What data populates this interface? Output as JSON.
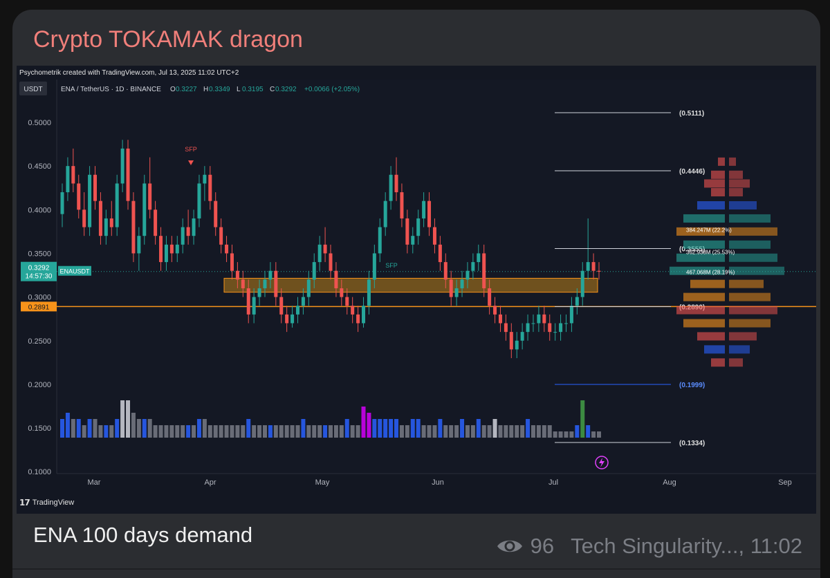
{
  "channel": {
    "title": "Crypto TOKAMAK dragon"
  },
  "screenshot": {
    "credit": "Psychometrik created with TradingView.com, Jul 13, 2025 11:02 UTC+2",
    "watermark": "TradingView"
  },
  "post": {
    "caption": "ENA 100 days demand",
    "views": "96",
    "author_time": "Tech Singularity..., 11:02"
  },
  "icons": {
    "views": "eye-icon",
    "logo": "tradingview-logo-icon",
    "flash": "lightning-icon"
  },
  "colors": {
    "up": "#26a69a",
    "down": "#ef5350",
    "orange": "#f7931a",
    "zone": "#b9821a",
    "volume_blue": "#2962ff",
    "volume_gray": "#787b86"
  },
  "chart_data": {
    "type": "candlestick",
    "symbol_bar": {
      "currency_tag": "USDT",
      "symbol": "ENA / TetherUS · 1D · BINANCE",
      "ohlc_labels": [
        "O",
        "H",
        "L",
        "C"
      ],
      "ohlc_values": [
        "0.3227",
        "0.3349",
        "0.3195",
        "0.3292"
      ],
      "change": "+0.0066 (+2.05%)"
    },
    "y_ticks": [
      "0.5000",
      "0.4500",
      "0.4000",
      "0.3500",
      "0.3000",
      "0.2500",
      "0.2000",
      "0.1500",
      "0.1000"
    ],
    "y_range": [
      0.095,
      0.55
    ],
    "x_ticks": [
      "Mar",
      "Apr",
      "May",
      "Jun",
      "Jul",
      "Aug",
      "Sep"
    ],
    "last_price": {
      "label": "ENAUSDT",
      "value": "0.3292",
      "countdown": "14:57:30"
    },
    "horizontal_line": {
      "value": 0.2891,
      "label": "0.2891"
    },
    "demand_zone": [
      0.3055,
      0.3215
    ],
    "annotations": [
      "SFP",
      "SFP"
    ],
    "fib_levels": [
      {
        "value": 0.5111,
        "label": "(0.5111)"
      },
      {
        "value": 0.4446,
        "label": "(0.4446)"
      },
      {
        "value": 0.3555,
        "label": "(0.3555)"
      },
      {
        "value": 0.289,
        "label": "(0.2890)"
      },
      {
        "value": 0.1999,
        "label": "(0.1999)"
      },
      {
        "value": 0.1334,
        "label": "(0.1334)"
      }
    ],
    "volume_profile_labels": [
      "384.247M (22.2%)",
      "362.938M (25.53%)",
      "467.068M (28.19%)"
    ],
    "candles": [
      [
        0.395,
        0.43,
        0.38,
        0.42
      ],
      [
        0.42,
        0.46,
        0.41,
        0.45
      ],
      [
        0.45,
        0.47,
        0.42,
        0.43
      ],
      [
        0.43,
        0.44,
        0.39,
        0.4
      ],
      [
        0.4,
        0.42,
        0.37,
        0.38
      ],
      [
        0.38,
        0.45,
        0.37,
        0.44
      ],
      [
        0.44,
        0.45,
        0.4,
        0.41
      ],
      [
        0.41,
        0.42,
        0.36,
        0.37
      ],
      [
        0.37,
        0.4,
        0.36,
        0.39
      ],
      [
        0.39,
        0.41,
        0.37,
        0.38
      ],
      [
        0.38,
        0.44,
        0.37,
        0.43
      ],
      [
        0.43,
        0.48,
        0.42,
        0.47
      ],
      [
        0.47,
        0.48,
        0.4,
        0.41
      ],
      [
        0.41,
        0.42,
        0.34,
        0.35
      ],
      [
        0.35,
        0.38,
        0.33,
        0.37
      ],
      [
        0.37,
        0.44,
        0.36,
        0.43
      ],
      [
        0.43,
        0.46,
        0.39,
        0.4
      ],
      [
        0.4,
        0.41,
        0.36,
        0.37
      ],
      [
        0.37,
        0.38,
        0.33,
        0.34
      ],
      [
        0.34,
        0.37,
        0.33,
        0.36
      ],
      [
        0.36,
        0.37,
        0.34,
        0.35
      ],
      [
        0.35,
        0.37,
        0.34,
        0.36
      ],
      [
        0.36,
        0.39,
        0.35,
        0.38
      ],
      [
        0.38,
        0.4,
        0.36,
        0.37
      ],
      [
        0.37,
        0.4,
        0.36,
        0.39
      ],
      [
        0.39,
        0.44,
        0.38,
        0.43
      ],
      [
        0.43,
        0.45,
        0.41,
        0.44
      ],
      [
        0.44,
        0.45,
        0.4,
        0.41
      ],
      [
        0.41,
        0.42,
        0.37,
        0.38
      ],
      [
        0.38,
        0.39,
        0.35,
        0.36
      ],
      [
        0.36,
        0.37,
        0.34,
        0.35
      ],
      [
        0.35,
        0.36,
        0.32,
        0.33
      ],
      [
        0.33,
        0.34,
        0.31,
        0.32
      ],
      [
        0.32,
        0.33,
        0.3,
        0.31
      ],
      [
        0.31,
        0.32,
        0.27,
        0.28
      ],
      [
        0.28,
        0.31,
        0.27,
        0.3
      ],
      [
        0.3,
        0.32,
        0.29,
        0.31
      ],
      [
        0.31,
        0.33,
        0.3,
        0.32
      ],
      [
        0.32,
        0.34,
        0.31,
        0.33
      ],
      [
        0.33,
        0.34,
        0.29,
        0.3
      ],
      [
        0.3,
        0.31,
        0.27,
        0.28
      ],
      [
        0.28,
        0.29,
        0.26,
        0.27
      ],
      [
        0.27,
        0.29,
        0.265,
        0.28
      ],
      [
        0.28,
        0.3,
        0.27,
        0.29
      ],
      [
        0.29,
        0.31,
        0.28,
        0.3
      ],
      [
        0.3,
        0.33,
        0.29,
        0.32
      ],
      [
        0.32,
        0.35,
        0.31,
        0.34
      ],
      [
        0.34,
        0.37,
        0.33,
        0.36
      ],
      [
        0.36,
        0.38,
        0.34,
        0.35
      ],
      [
        0.35,
        0.36,
        0.32,
        0.33
      ],
      [
        0.33,
        0.34,
        0.3,
        0.31
      ],
      [
        0.31,
        0.32,
        0.29,
        0.3
      ],
      [
        0.3,
        0.31,
        0.28,
        0.29
      ],
      [
        0.29,
        0.3,
        0.27,
        0.28
      ],
      [
        0.28,
        0.29,
        0.26,
        0.27
      ],
      [
        0.27,
        0.3,
        0.265,
        0.29
      ],
      [
        0.29,
        0.33,
        0.28,
        0.32
      ],
      [
        0.32,
        0.36,
        0.31,
        0.35
      ],
      [
        0.35,
        0.39,
        0.34,
        0.38
      ],
      [
        0.38,
        0.42,
        0.37,
        0.41
      ],
      [
        0.41,
        0.45,
        0.4,
        0.44
      ],
      [
        0.44,
        0.46,
        0.41,
        0.42
      ],
      [
        0.42,
        0.43,
        0.38,
        0.39
      ],
      [
        0.39,
        0.4,
        0.35,
        0.36
      ],
      [
        0.36,
        0.38,
        0.35,
        0.37
      ],
      [
        0.37,
        0.4,
        0.36,
        0.39
      ],
      [
        0.39,
        0.42,
        0.38,
        0.41
      ],
      [
        0.41,
        0.42,
        0.37,
        0.38
      ],
      [
        0.38,
        0.39,
        0.35,
        0.36
      ],
      [
        0.36,
        0.37,
        0.33,
        0.34
      ],
      [
        0.34,
        0.35,
        0.31,
        0.32
      ],
      [
        0.32,
        0.33,
        0.29,
        0.3
      ],
      [
        0.3,
        0.32,
        0.29,
        0.31
      ],
      [
        0.31,
        0.33,
        0.3,
        0.32
      ],
      [
        0.32,
        0.34,
        0.31,
        0.33
      ],
      [
        0.33,
        0.35,
        0.32,
        0.34
      ],
      [
        0.34,
        0.36,
        0.33,
        0.35
      ],
      [
        0.35,
        0.36,
        0.3,
        0.31
      ],
      [
        0.31,
        0.32,
        0.28,
        0.29
      ],
      [
        0.29,
        0.3,
        0.27,
        0.28
      ],
      [
        0.28,
        0.29,
        0.26,
        0.27
      ],
      [
        0.27,
        0.28,
        0.25,
        0.26
      ],
      [
        0.26,
        0.27,
        0.23,
        0.24
      ],
      [
        0.24,
        0.26,
        0.23,
        0.25
      ],
      [
        0.25,
        0.27,
        0.24,
        0.26
      ],
      [
        0.26,
        0.28,
        0.25,
        0.27
      ],
      [
        0.27,
        0.28,
        0.26,
        0.27
      ],
      [
        0.27,
        0.29,
        0.26,
        0.28
      ],
      [
        0.28,
        0.29,
        0.26,
        0.27
      ],
      [
        0.27,
        0.28,
        0.25,
        0.26
      ],
      [
        0.26,
        0.27,
        0.25,
        0.26
      ],
      [
        0.26,
        0.28,
        0.25,
        0.27
      ],
      [
        0.27,
        0.28,
        0.26,
        0.27
      ],
      [
        0.27,
        0.3,
        0.26,
        0.29
      ],
      [
        0.29,
        0.31,
        0.28,
        0.3
      ],
      [
        0.3,
        0.34,
        0.29,
        0.33
      ],
      [
        0.33,
        0.39,
        0.32,
        0.34
      ],
      [
        0.34,
        0.35,
        0.32,
        0.33
      ],
      [
        0.33,
        0.34,
        0.32,
        0.329
      ]
    ],
    "volume": [
      [
        3,
        "b"
      ],
      [
        4,
        "b"
      ],
      [
        3,
        "g"
      ],
      [
        3,
        "b"
      ],
      [
        2,
        "g"
      ],
      [
        3,
        "b"
      ],
      [
        3,
        "g"
      ],
      [
        2,
        "g"
      ],
      [
        2,
        "b"
      ],
      [
        2,
        "g"
      ],
      [
        3,
        "b"
      ],
      [
        6,
        "w"
      ],
      [
        6,
        "w"
      ],
      [
        4,
        "g"
      ],
      [
        3,
        "g"
      ],
      [
        3,
        "b"
      ],
      [
        3,
        "g"
      ],
      [
        2,
        "g"
      ],
      [
        2,
        "g"
      ],
      [
        2,
        "g"
      ],
      [
        2,
        "g"
      ],
      [
        2,
        "g"
      ],
      [
        2,
        "g"
      ],
      [
        2,
        "b"
      ],
      [
        2,
        "g"
      ],
      [
        3,
        "b"
      ],
      [
        3,
        "g"
      ],
      [
        2,
        "g"
      ],
      [
        2,
        "g"
      ],
      [
        2,
        "g"
      ],
      [
        2,
        "g"
      ],
      [
        2,
        "g"
      ],
      [
        2,
        "g"
      ],
      [
        2,
        "g"
      ],
      [
        3,
        "b"
      ],
      [
        2,
        "g"
      ],
      [
        2,
        "g"
      ],
      [
        2,
        "g"
      ],
      [
        2,
        "b"
      ],
      [
        2,
        "g"
      ],
      [
        2,
        "g"
      ],
      [
        2,
        "g"
      ],
      [
        2,
        "g"
      ],
      [
        2,
        "g"
      ],
      [
        3,
        "b"
      ],
      [
        2,
        "g"
      ],
      [
        2,
        "g"
      ],
      [
        2,
        "g"
      ],
      [
        2,
        "b"
      ],
      [
        2,
        "g"
      ],
      [
        2,
        "g"
      ],
      [
        2,
        "g"
      ],
      [
        3,
        "b"
      ],
      [
        2,
        "g"
      ],
      [
        2,
        "g"
      ],
      [
        5,
        "m"
      ],
      [
        4,
        "m"
      ],
      [
        3,
        "b"
      ],
      [
        3,
        "b"
      ],
      [
        3,
        "b"
      ],
      [
        3,
        "b"
      ],
      [
        3,
        "b"
      ],
      [
        2,
        "g"
      ],
      [
        2,
        "g"
      ],
      [
        3,
        "b"
      ],
      [
        3,
        "b"
      ],
      [
        2,
        "g"
      ],
      [
        2,
        "g"
      ],
      [
        2,
        "g"
      ],
      [
        3,
        "b"
      ],
      [
        2,
        "g"
      ],
      [
        2,
        "g"
      ],
      [
        2,
        "g"
      ],
      [
        3,
        "b"
      ],
      [
        2,
        "g"
      ],
      [
        2,
        "g"
      ],
      [
        3,
        "b"
      ],
      [
        2,
        "g"
      ],
      [
        2,
        "g"
      ],
      [
        3,
        "w"
      ],
      [
        2,
        "g"
      ],
      [
        2,
        "g"
      ],
      [
        2,
        "g"
      ],
      [
        2,
        "g"
      ],
      [
        2,
        "g"
      ],
      [
        3,
        "b"
      ],
      [
        2,
        "g"
      ],
      [
        2,
        "g"
      ],
      [
        2,
        "g"
      ],
      [
        2,
        "g"
      ],
      [
        1,
        "g"
      ],
      [
        1,
        "g"
      ],
      [
        1,
        "g"
      ],
      [
        1,
        "g"
      ],
      [
        2,
        "b"
      ],
      [
        6,
        "gr"
      ],
      [
        2,
        "b"
      ],
      [
        1,
        "g"
      ],
      [
        1,
        "g"
      ]
    ]
  }
}
